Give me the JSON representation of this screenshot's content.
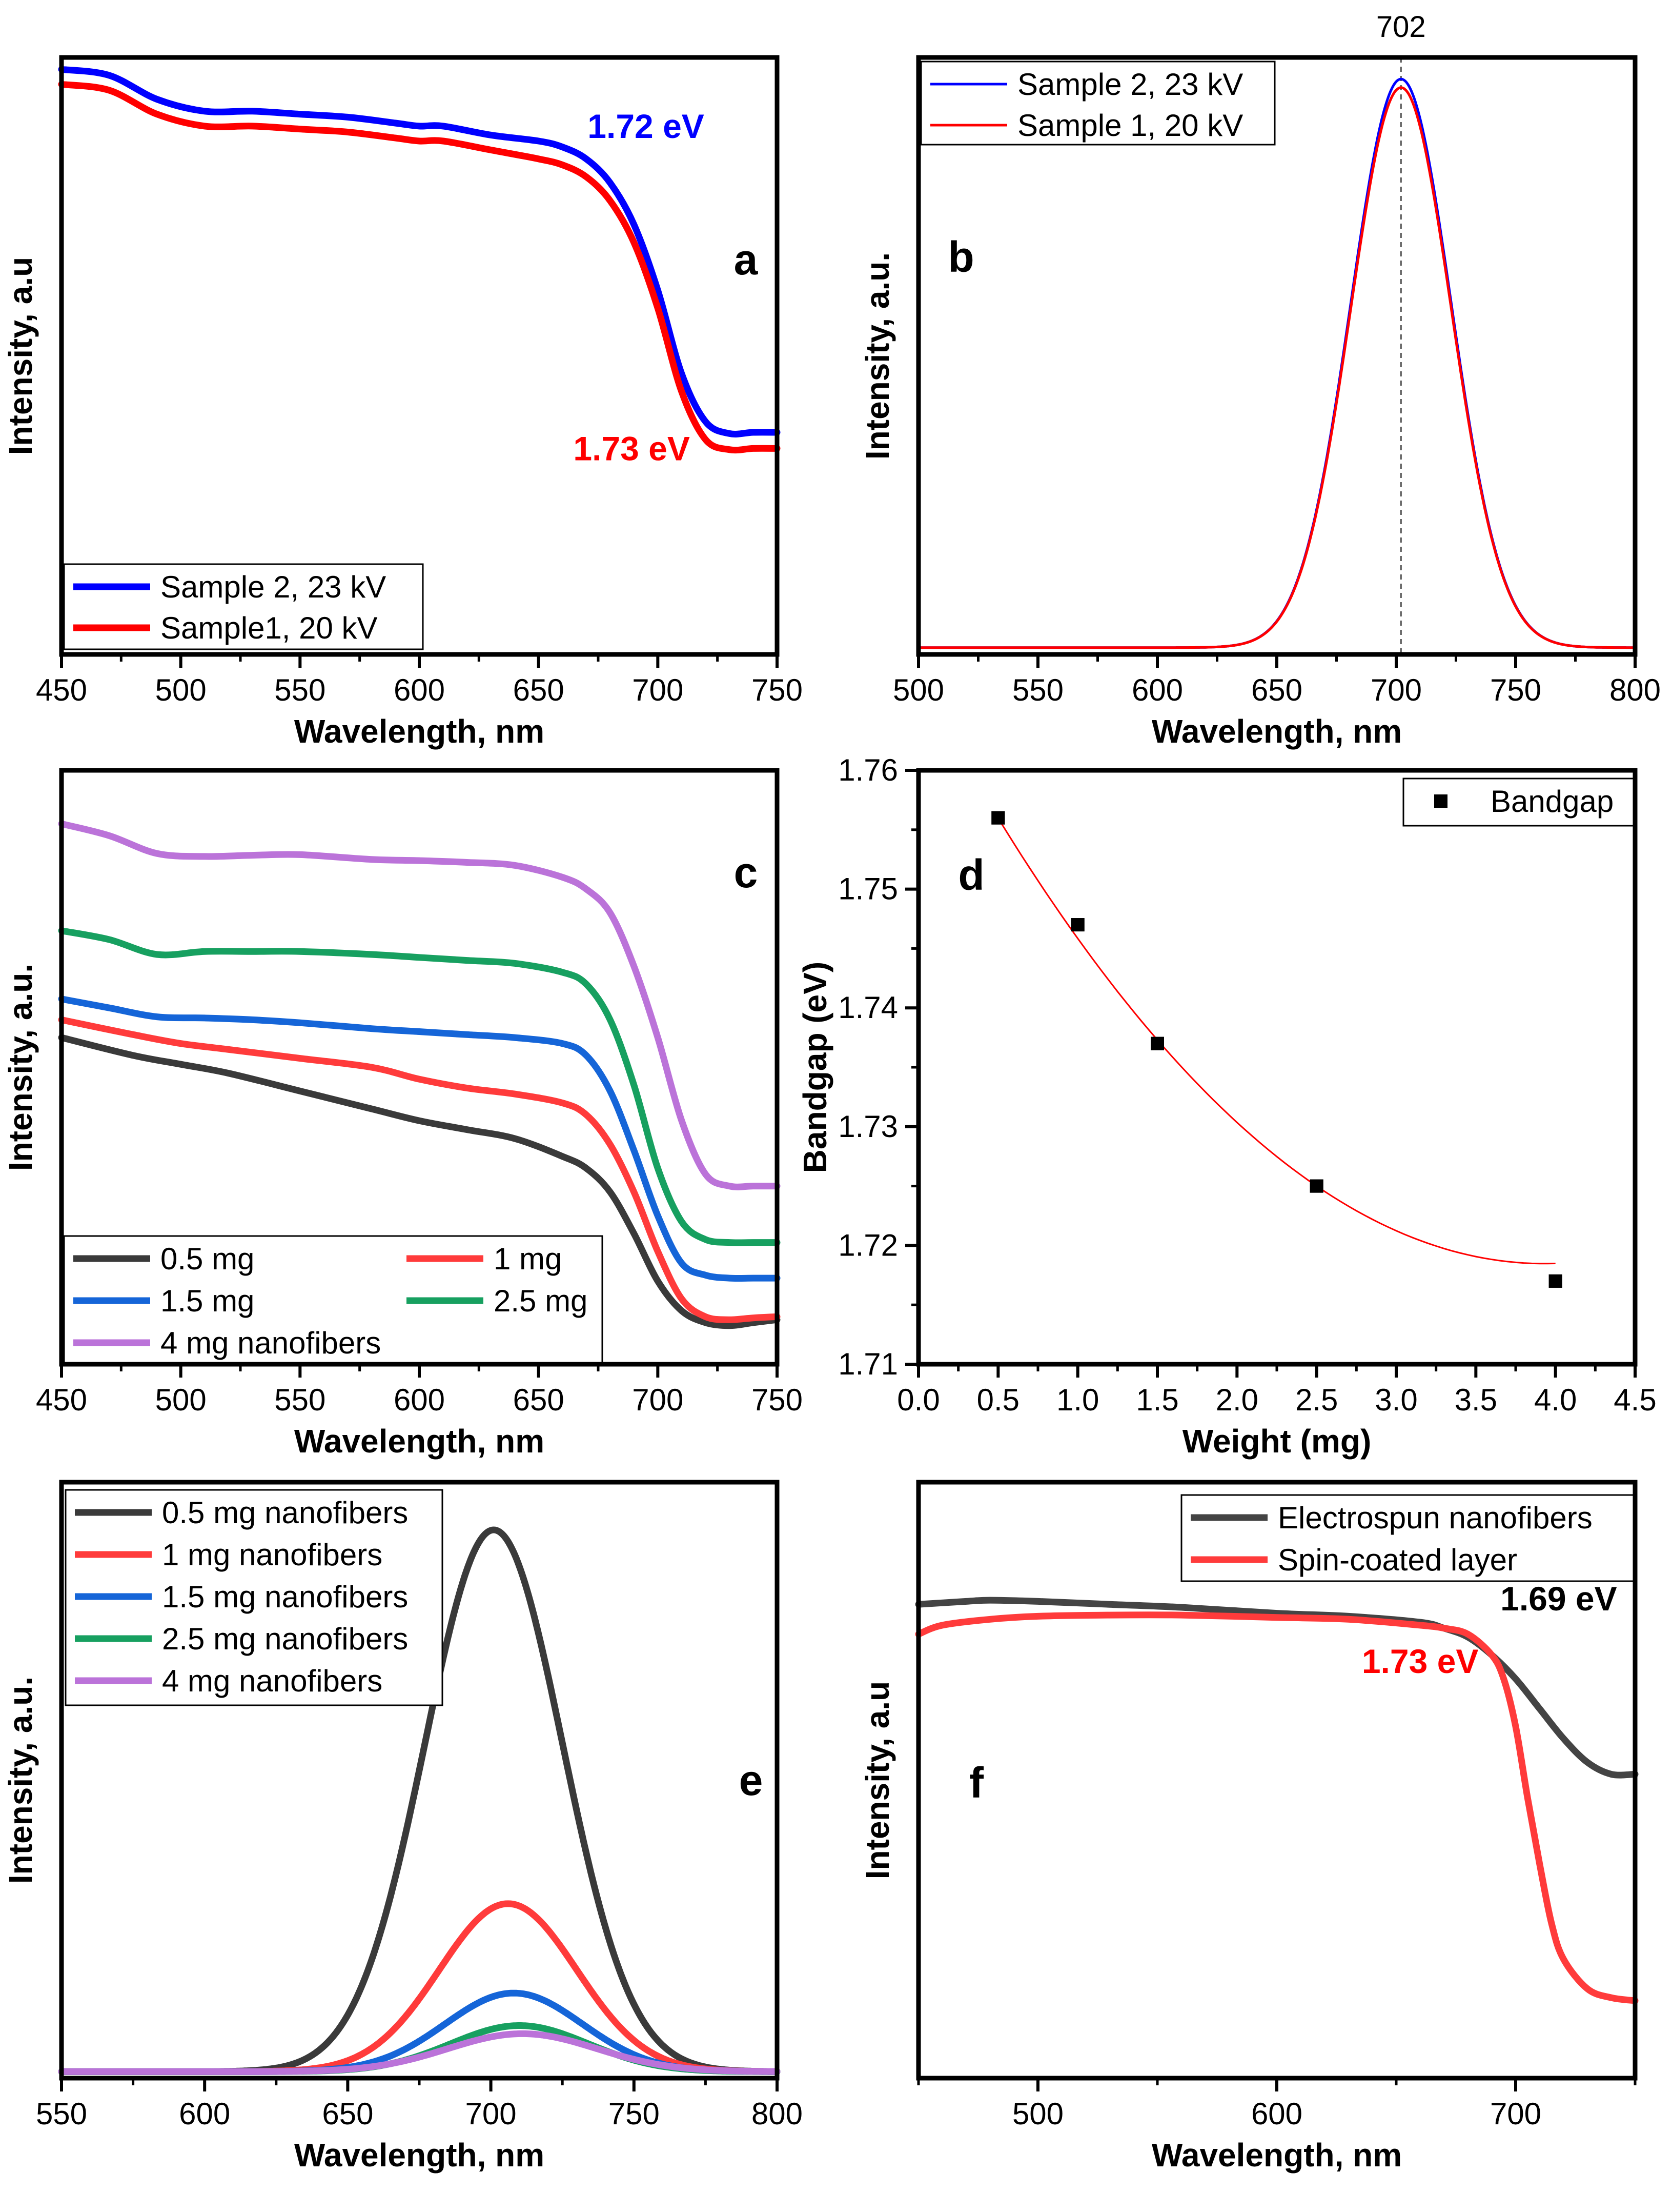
{
  "chart_data": [
    {
      "panel": "a",
      "type": "line",
      "xlabel": "Wavelength, nm",
      "ylabel": "Intensity, a.u",
      "xlim": [
        450,
        750
      ],
      "ylim": [
        0,
        1
      ],
      "xticks": [
        "450",
        "500",
        "550",
        "600",
        "650",
        "700",
        "750"
      ],
      "legend": "bottom-left",
      "annotations": [
        {
          "text": "1.72 eV",
          "color": "#0000ff",
          "x": 695,
          "y": 0.865
        },
        {
          "text": "1.73 eV",
          "color": "#ff0000",
          "x": 689,
          "y": 0.325
        }
      ],
      "series": [
        {
          "name": "Sample 2, 23 kV",
          "color": "#0000ff",
          "x": [
            450,
            470,
            490,
            510,
            530,
            550,
            570,
            590,
            600,
            610,
            630,
            650,
            660,
            670,
            680,
            690,
            700,
            710,
            720,
            730,
            740,
            750
          ],
          "y": [
            0.98,
            0.97,
            0.93,
            0.91,
            0.91,
            0.905,
            0.9,
            0.89,
            0.885,
            0.885,
            0.87,
            0.86,
            0.85,
            0.83,
            0.79,
            0.72,
            0.61,
            0.47,
            0.39,
            0.37,
            0.372,
            0.372
          ]
        },
        {
          "name": "Sample1, 20 kV",
          "color": "#ff0000",
          "x": [
            450,
            470,
            490,
            510,
            530,
            550,
            570,
            590,
            600,
            610,
            630,
            650,
            660,
            670,
            680,
            690,
            700,
            710,
            720,
            730,
            740,
            750
          ],
          "y": [
            0.955,
            0.945,
            0.905,
            0.885,
            0.885,
            0.88,
            0.875,
            0.865,
            0.86,
            0.86,
            0.845,
            0.83,
            0.82,
            0.8,
            0.76,
            0.69,
            0.58,
            0.44,
            0.36,
            0.343,
            0.345,
            0.345
          ]
        }
      ]
    },
    {
      "panel": "b",
      "type": "line",
      "xlabel": "Wavelength, nm",
      "ylabel": "Intensity, a.u.",
      "xlim": [
        500,
        800
      ],
      "ylim": [
        0,
        1.05
      ],
      "xticks": [
        "500",
        "550",
        "600",
        "650",
        "700",
        "750",
        "800"
      ],
      "legend": "top-left",
      "peak_marker": {
        "x": 702,
        "label": "702"
      },
      "series": [
        {
          "name": "Sample 2, 23 kV",
          "color": "#0000ff",
          "peak": 702,
          "sigma": 21,
          "amplitude": 1.0
        },
        {
          "name": "Sample 1, 20 kV",
          "color": "#ff0000",
          "peak": 702,
          "sigma": 21,
          "amplitude": 0.985
        }
      ]
    },
    {
      "panel": "c",
      "type": "line",
      "xlabel": "Wavelength, nm",
      "ylabel": "Intensity, a.u.",
      "xlim": [
        450,
        750
      ],
      "ylim": [
        0,
        1
      ],
      "xticks": [
        "450",
        "500",
        "550",
        "600",
        "650",
        "700",
        "750"
      ],
      "legend": "bottom-left",
      "series": [
        {
          "name": "0.5 mg",
          "color": "#3a3a3a",
          "x": [
            450,
            480,
            500,
            520,
            550,
            580,
            600,
            620,
            640,
            660,
            670,
            680,
            690,
            700,
            710,
            720,
            730,
            740,
            750
          ],
          "y": [
            0.55,
            0.52,
            0.505,
            0.49,
            0.46,
            0.43,
            0.41,
            0.395,
            0.38,
            0.35,
            0.33,
            0.29,
            0.22,
            0.14,
            0.09,
            0.07,
            0.065,
            0.07,
            0.075
          ]
        },
        {
          "name": "1 mg",
          "color": "#ff3b3b",
          "x": [
            450,
            480,
            500,
            520,
            550,
            580,
            600,
            620,
            640,
            660,
            670,
            680,
            690,
            700,
            710,
            720,
            730,
            740,
            750
          ],
          "y": [
            0.58,
            0.555,
            0.54,
            0.53,
            0.515,
            0.5,
            0.48,
            0.465,
            0.455,
            0.44,
            0.42,
            0.37,
            0.29,
            0.19,
            0.11,
            0.08,
            0.075,
            0.078,
            0.08
          ]
        },
        {
          "name": "1.5 mg",
          "color": "#1565d8",
          "x": [
            450,
            470,
            490,
            510,
            530,
            550,
            580,
            600,
            620,
            640,
            660,
            670,
            680,
            690,
            700,
            710,
            720,
            730,
            740,
            750
          ],
          "y": [
            0.615,
            0.6,
            0.585,
            0.583,
            0.58,
            0.575,
            0.565,
            0.56,
            0.555,
            0.55,
            0.54,
            0.52,
            0.46,
            0.36,
            0.25,
            0.17,
            0.15,
            0.145,
            0.145,
            0.145
          ]
        },
        {
          "name": "2.5 mg",
          "color": "#17a060",
          "x": [
            450,
            470,
            490,
            510,
            530,
            550,
            580,
            600,
            620,
            640,
            660,
            670,
            680,
            690,
            700,
            710,
            720,
            730,
            740,
            750
          ],
          "y": [
            0.73,
            0.715,
            0.69,
            0.695,
            0.695,
            0.695,
            0.69,
            0.685,
            0.68,
            0.675,
            0.66,
            0.64,
            0.58,
            0.47,
            0.33,
            0.24,
            0.21,
            0.205,
            0.205,
            0.205
          ]
        },
        {
          "name": "4 mg nanofibers",
          "color": "#bb73d9",
          "x": [
            450,
            470,
            490,
            510,
            530,
            550,
            580,
            600,
            620,
            640,
            660,
            670,
            680,
            690,
            700,
            710,
            720,
            730,
            740,
            750
          ],
          "y": [
            0.91,
            0.89,
            0.86,
            0.855,
            0.857,
            0.858,
            0.85,
            0.848,
            0.845,
            0.84,
            0.82,
            0.8,
            0.76,
            0.67,
            0.55,
            0.41,
            0.32,
            0.3,
            0.3,
            0.3
          ]
        }
      ]
    },
    {
      "panel": "d",
      "type": "scatter",
      "xlabel": "Weight (mg)",
      "ylabel": "Bandgap (eV)",
      "xlim": [
        0.0,
        4.5
      ],
      "ylim": [
        1.71,
        1.76
      ],
      "xticks": [
        "0.0",
        "0.5",
        "1.0",
        "1.5",
        "2.0",
        "2.5",
        "3.0",
        "3.5",
        "4.0",
        "4.5"
      ],
      "yticks": [
        "1.71",
        "1.72",
        "1.73",
        "1.74",
        "1.75",
        "1.76"
      ],
      "legend": "top-right",
      "series": [
        {
          "name": "Bandgap",
          "color": "#000000",
          "x": [
            0.5,
            1.0,
            1.5,
            2.5,
            4.0
          ],
          "y": [
            1.756,
            1.747,
            1.737,
            1.725,
            1.717
          ]
        }
      ],
      "fit": {
        "color": "#ff0000",
        "coefficients": [
          1.7677,
          -0.02504,
          0.003184
        ]
      }
    },
    {
      "panel": "e",
      "type": "line",
      "xlabel": "Wavelength, nm",
      "ylabel": "Intensity, a.u.",
      "xlim": [
        550,
        800
      ],
      "ylim": [
        0,
        1.1
      ],
      "xticks": [
        "550",
        "600",
        "650",
        "700",
        "750",
        "800"
      ],
      "legend": "top-left",
      "series": [
        {
          "name": "0.5 mg nanofibers",
          "color": "#3a3a3a",
          "peak": 701,
          "sigma": 24,
          "amplitude": 1.0
        },
        {
          "name": "1 mg nanofibers",
          "color": "#ff3b3b",
          "peak": 706,
          "sigma": 24,
          "amplitude": 0.31
        },
        {
          "name": "1.5 mg nanofibers",
          "color": "#1565d8",
          "peak": 708,
          "sigma": 24,
          "amplitude": 0.145
        },
        {
          "name": "2.5 mg nanofibers",
          "color": "#17a060",
          "peak": 710,
          "sigma": 24,
          "amplitude": 0.085
        },
        {
          "name": "4 mg nanofibers",
          "color": "#bb73d9",
          "peak": 711,
          "sigma": 26,
          "amplitude": 0.07
        }
      ]
    },
    {
      "panel": "f",
      "type": "line",
      "xlabel": "Wavelength, nm",
      "ylabel": "Intensity, a.u",
      "xlim": [
        450,
        750
      ],
      "ylim": [
        0,
        1
      ],
      "xticks": [
        "500",
        "600",
        "700"
      ],
      "legend": "top-right",
      "annotations": [
        {
          "text": "1.69 eV",
          "color": "#000000",
          "x": 718,
          "y": 0.785
        },
        {
          "text": "1.73 eV",
          "color": "#ff0000",
          "x": 660,
          "y": 0.68
        }
      ],
      "series": [
        {
          "name": "Electrospun nanofibers",
          "color": "#444444",
          "x": [
            450,
            470,
            480,
            500,
            530,
            560,
            600,
            630,
            660,
            670,
            680,
            690,
            700,
            710,
            720,
            730,
            740,
            750
          ],
          "y": [
            0.795,
            0.8,
            0.802,
            0.8,
            0.795,
            0.79,
            0.78,
            0.775,
            0.765,
            0.755,
            0.74,
            0.71,
            0.67,
            0.62,
            0.57,
            0.53,
            0.51,
            0.51
          ]
        },
        {
          "name": "Spin-coated layer",
          "color": "#ff3b3b",
          "x": [
            450,
            460,
            480,
            500,
            530,
            560,
            600,
            630,
            660,
            670,
            680,
            690,
            695,
            700,
            705,
            710,
            715,
            720,
            730,
            740,
            750
          ],
          "y": [
            0.745,
            0.76,
            0.77,
            0.775,
            0.777,
            0.777,
            0.773,
            0.77,
            0.76,
            0.755,
            0.745,
            0.71,
            0.67,
            0.59,
            0.47,
            0.36,
            0.26,
            0.2,
            0.15,
            0.135,
            0.13
          ]
        }
      ]
    }
  ]
}
